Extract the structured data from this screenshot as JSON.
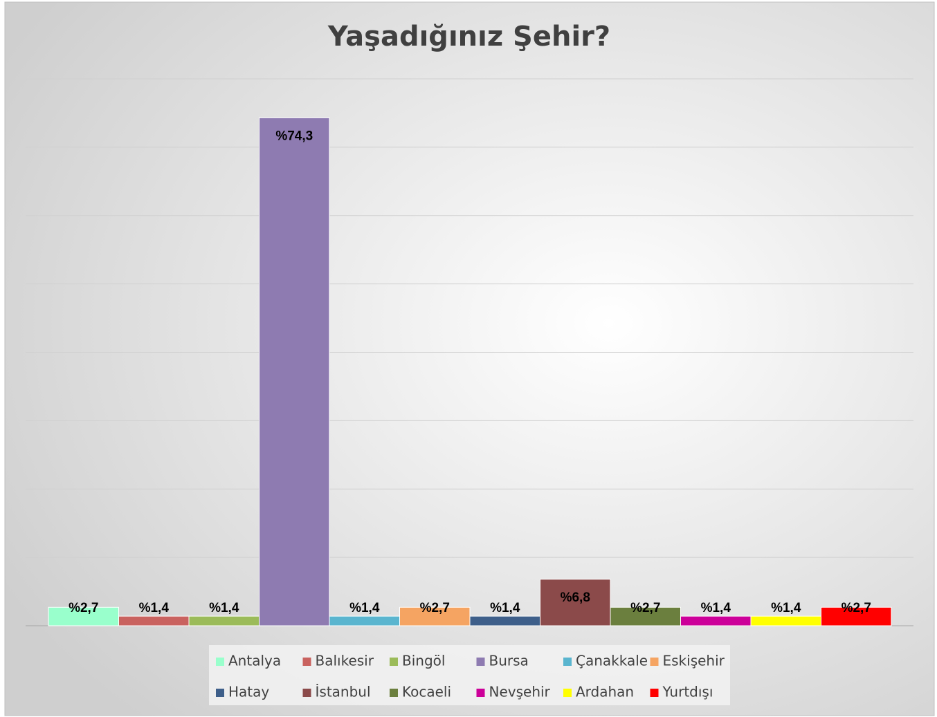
{
  "chart_data": {
    "type": "bar",
    "title": "Yaşadığınız Şehir?",
    "categories": [
      "Antalya",
      "Balıkesir",
      "Bingöl",
      "Bursa",
      "Çanakkale",
      "Eskişehir",
      "Hatay",
      "İstanbul",
      "Kocaeli",
      "Nevşehir",
      "Ardahan",
      "Yurtdışı"
    ],
    "values": [
      2.7,
      1.4,
      1.4,
      74.3,
      1.4,
      2.7,
      1.4,
      6.8,
      2.7,
      1.4,
      1.4,
      2.7
    ],
    "value_labels": [
      "%2,7",
      "%1,4",
      "%1,4",
      "%74,3",
      "%1,4",
      "%2,7",
      "%1,4",
      "%6,8",
      "%2,7",
      "%1,4",
      "%1,4",
      "%2,7"
    ],
    "colors": [
      "#99ffcc",
      "#c9625f",
      "#9bbb59",
      "#8e7bb1",
      "#5ab5cf",
      "#f5a462",
      "#3e5f8a",
      "#8b4a4a",
      "#6b7f3e",
      "#cc0099",
      "#ffff00",
      "#ff0000"
    ],
    "ylim": [
      0,
      80
    ],
    "yticks": [
      0,
      10,
      20,
      30,
      40,
      50,
      60,
      70,
      80
    ],
    "grid": true,
    "legend": "bottom"
  }
}
